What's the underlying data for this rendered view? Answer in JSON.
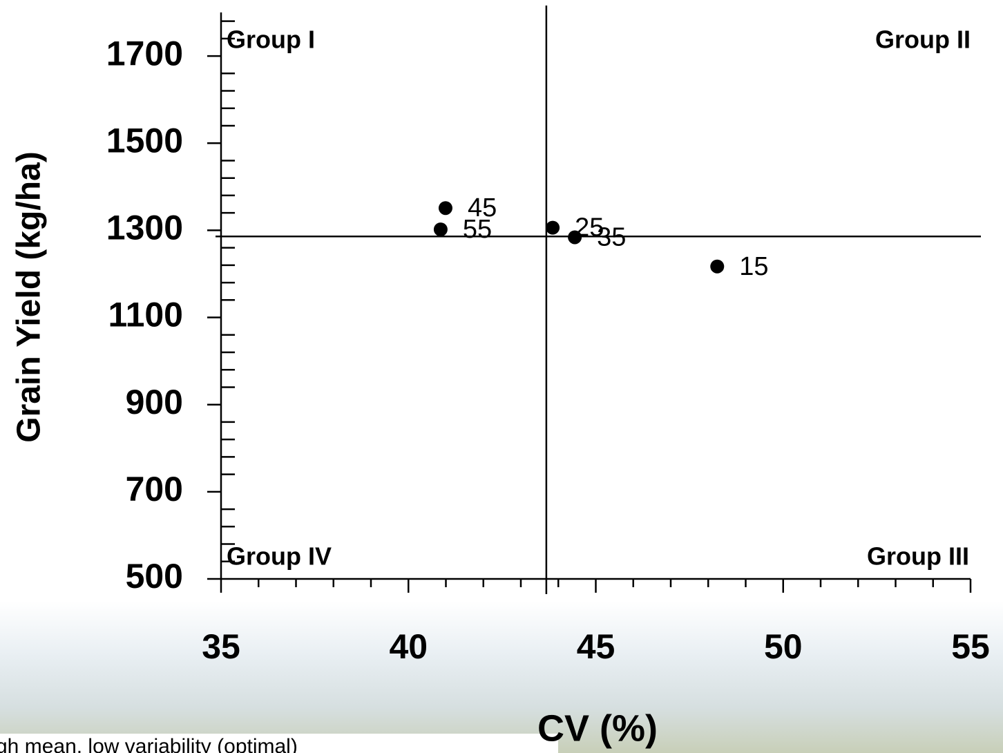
{
  "chart_data": {
    "type": "scatter",
    "title_y": "Grain Yield (kg/ha)",
    "title_x": "CV (%)",
    "annotations": [
      "Group I",
      "Group II",
      "Group III",
      "Group IV"
    ],
    "caption": "gh mean, low variability (optimal)",
    "x": [
      48.24,
      43.85,
      44.44,
      40.99,
      40.86
    ],
    "values": [
      1217,
      1306,
      1284,
      1351,
      1302
    ],
    "labels": [
      "15",
      "25",
      "35",
      "45",
      "55"
    ],
    "color": "#000000",
    "xlim": [
      35,
      55
    ],
    "xticks": [
      35,
      40,
      45,
      50,
      55
    ],
    "xminorticks": [
      36,
      37,
      38,
      39,
      41,
      42,
      43,
      44,
      46,
      47,
      48,
      49,
      51,
      52,
      53,
      54
    ],
    "ylim": [
      500,
      1800
    ],
    "yticks": [
      500,
      700,
      900,
      1100,
      1300,
      1500,
      1700
    ],
    "yminorticks": [
      540,
      580,
      620,
      660,
      740,
      780,
      820,
      860,
      940,
      980,
      1020,
      1060,
      1140,
      1180,
      1220,
      1260,
      1340,
      1380,
      1420,
      1460,
      1540,
      1580,
      1620,
      1660,
      1740,
      1780
    ],
    "reference_lines": {
      "x": 43.68,
      "y": 1286
    }
  }
}
